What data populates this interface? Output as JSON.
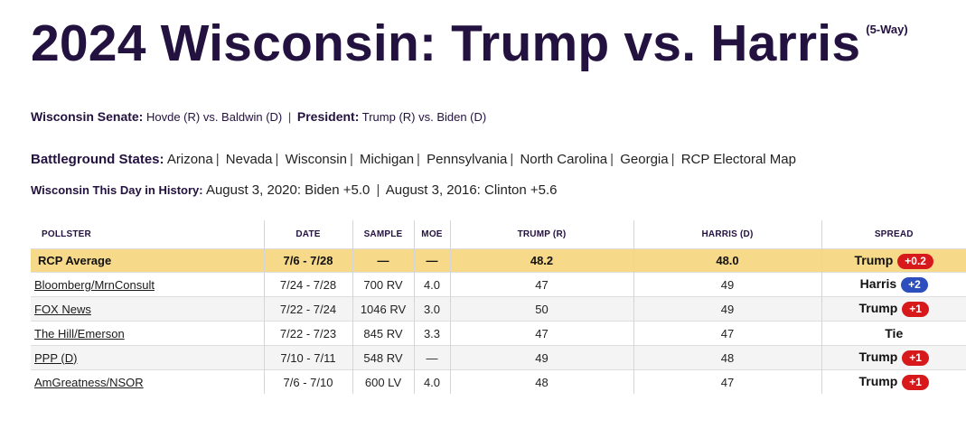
{
  "title": {
    "main": "2024 Wisconsin: Trump vs. Harris",
    "subtag": "(5-Way)"
  },
  "related": {
    "senate_label": "Wisconsin Senate:",
    "senate_link": "Hovde (R) vs. Baldwin (D)",
    "sep": "|",
    "president_label": "President:",
    "president_link": "Trump (R) vs. Biden (D)"
  },
  "battleground": {
    "label": "Battleground States:",
    "states": [
      "Arizona",
      "Nevada",
      "Wisconsin",
      "Michigan",
      "Pennsylvania",
      "North Carolina",
      "Georgia",
      "RCP Electoral Map"
    ]
  },
  "history": {
    "label": "Wisconsin This Day in History:",
    "item1": "August 3, 2020: Biden +5.0",
    "item2": "August 3, 2016: Clinton +5.6"
  },
  "table": {
    "headers": [
      "POLLSTER",
      "DATE",
      "SAMPLE",
      "MOE",
      "TRUMP (R)",
      "HARRIS (D)",
      "SPREAD"
    ],
    "rows": [
      {
        "pollster": "RCP Average",
        "date": "7/6 - 7/28",
        "sample": "—",
        "moe": "—",
        "trump": "48.2",
        "harris": "48.0",
        "spread_name": "Trump",
        "spread_value": "+0.2",
        "spread_color": "#d7191c"
      },
      {
        "pollster": "Bloomberg/MrnConsult",
        "date": "7/24 - 7/28",
        "sample": "700 RV",
        "moe": "4.0",
        "trump": "47",
        "harris": "49",
        "spread_name": "Harris",
        "spread_value": "+2",
        "spread_color": "#2d4fbd"
      },
      {
        "pollster": "FOX News",
        "date": "7/22 - 7/24",
        "sample": "1046 RV",
        "moe": "3.0",
        "trump": "50",
        "harris": "49",
        "spread_name": "Trump",
        "spread_value": "+1",
        "spread_color": "#d7191c"
      },
      {
        "pollster": "The Hill/Emerson",
        "date": "7/22 - 7/23",
        "sample": "845 RV",
        "moe": "3.3",
        "trump": "47",
        "harris": "47",
        "spread_name": "Tie",
        "spread_value": "",
        "spread_color": ""
      },
      {
        "pollster": "PPP (D)",
        "date": "7/10 - 7/11",
        "sample": "548 RV",
        "moe": "—",
        "trump": "49",
        "harris": "48",
        "spread_name": "Trump",
        "spread_value": "+1",
        "spread_color": "#d7191c"
      },
      {
        "pollster": "AmGreatness/NSOR",
        "date": "7/6 - 7/10",
        "sample": "600 LV",
        "moe": "4.0",
        "trump": "48",
        "harris": "47",
        "spread_name": "Trump",
        "spread_value": "+1",
        "spread_color": "#d7191c"
      }
    ]
  },
  "colors": {
    "title": "#23113f",
    "average_row": "#f7d98a",
    "trump_badge": "#d7191c",
    "harris_badge": "#2d4fbd"
  }
}
